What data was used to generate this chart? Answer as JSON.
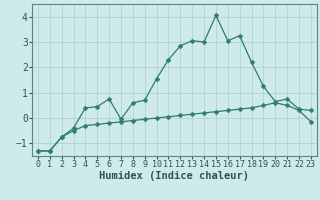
{
  "title": "",
  "xlabel": "Humidex (Indice chaleur)",
  "xlim": [
    -0.5,
    23.5
  ],
  "ylim": [
    -1.5,
    4.5
  ],
  "yticks": [
    -1,
    0,
    1,
    2,
    3,
    4
  ],
  "xticks": [
    0,
    1,
    2,
    3,
    4,
    5,
    6,
    7,
    8,
    9,
    10,
    11,
    12,
    13,
    14,
    15,
    16,
    17,
    18,
    19,
    20,
    21,
    22,
    23
  ],
  "line1_x": [
    0,
    1,
    2,
    3,
    4,
    5,
    6,
    7,
    8,
    9,
    10,
    11,
    12,
    13,
    14,
    15,
    16,
    17,
    18,
    19,
    20,
    21,
    22,
    23
  ],
  "line1_y": [
    -1.3,
    -1.3,
    -0.75,
    -0.4,
    0.4,
    0.45,
    0.75,
    -0.05,
    0.6,
    0.7,
    1.55,
    2.3,
    2.85,
    3.05,
    3.0,
    4.05,
    3.05,
    3.25,
    2.2,
    1.25,
    0.65,
    0.75,
    0.35,
    0.3
  ],
  "line2_x": [
    0,
    1,
    2,
    3,
    4,
    5,
    6,
    7,
    8,
    9,
    10,
    11,
    12,
    13,
    14,
    15,
    16,
    17,
    18,
    19,
    20,
    21,
    22,
    23
  ],
  "line2_y": [
    -1.3,
    -1.3,
    -0.75,
    -0.5,
    -0.3,
    -0.25,
    -0.2,
    -0.15,
    -0.1,
    -0.05,
    0.0,
    0.05,
    0.1,
    0.15,
    0.2,
    0.25,
    0.3,
    0.35,
    0.4,
    0.5,
    0.6,
    0.5,
    0.3,
    -0.15
  ],
  "line_color": "#2e7d6e",
  "bg_color": "#ceeaea",
  "grid_color": "#aacece",
  "spine_color": "#5a8888",
  "tick_color": "#2a5555",
  "tick_fontsize": 6,
  "xlabel_fontsize": 7.5,
  "linewidth": 0.9,
  "markersize": 2.5
}
